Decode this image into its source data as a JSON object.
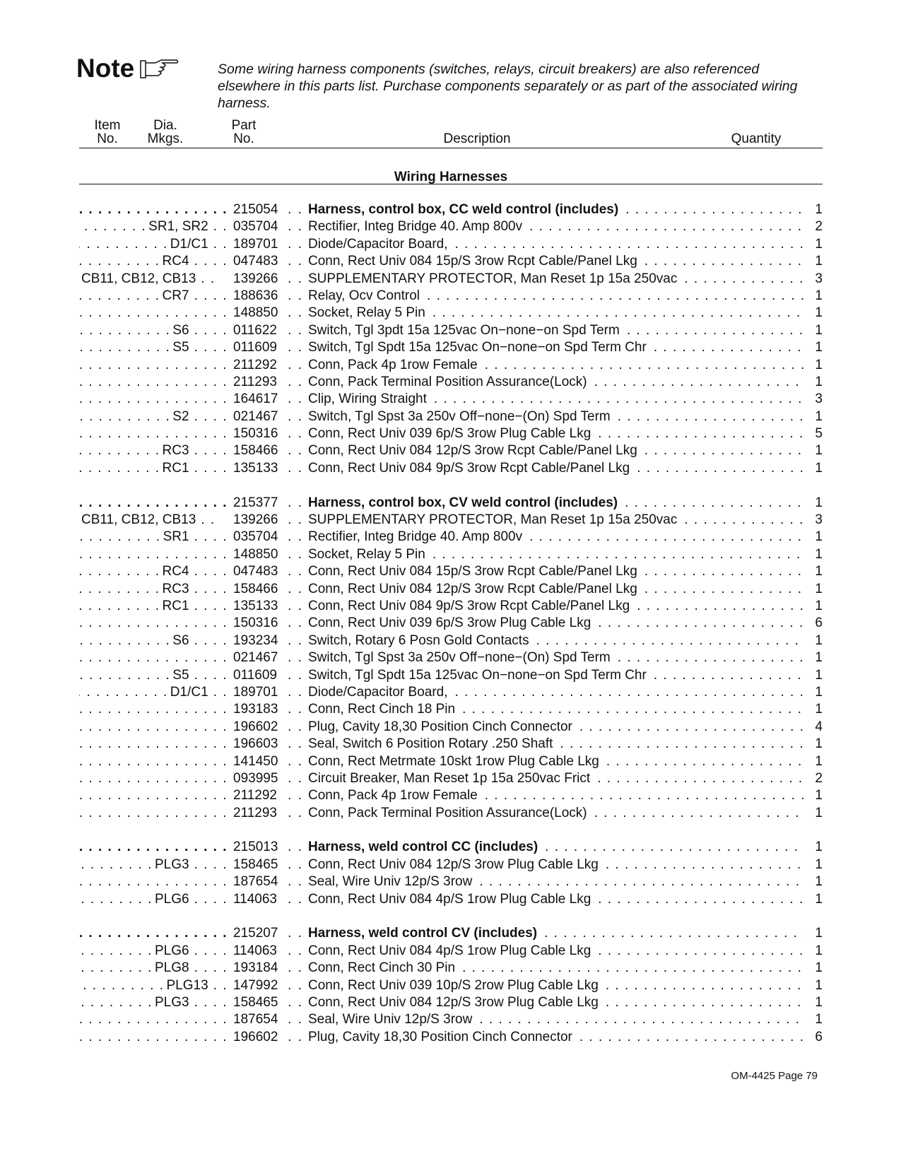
{
  "note": {
    "label": "Note",
    "icon": "pointing-hand-icon",
    "text": "Some wiring harness components (switches, relays, circuit breakers) are also referenced elsewhere in this parts list. Purchase components separately or as part of the associated wiring harness."
  },
  "columns": {
    "item_1": "Item",
    "item_2": "No.",
    "dia_1": "Dia.",
    "dia_2": "Mkgs.",
    "part_1": "Part",
    "part_2": "No.",
    "description": "Description",
    "quantity": "Quantity"
  },
  "section_title": "Wiring Harnesses",
  "groups": [
    {
      "rows": [
        {
          "mark": "",
          "part": "215054",
          "desc": "Harness, control box, CC weld control (includes)",
          "qty": "1",
          "bold": true
        },
        {
          "mark": "SR1, SR2",
          "part": "035704",
          "desc": "Rectifier, Integ Bridge 40. Amp 800v",
          "qty": "2"
        },
        {
          "mark": "D1/C1",
          "part": "189701",
          "desc": "Diode/Capacitor Board,",
          "qty": "1"
        },
        {
          "mark": "RC4",
          "part": "047483",
          "desc": "Conn, Rect Univ 084 15p/S 3row Rcpt Cable/Panel Lkg",
          "qty": "1"
        },
        {
          "mark": "CB11, CB12, CB13",
          "part": "139266",
          "desc": "SUPPLEMENTARY PROTECTOR, Man Reset 1p 15a 250vac",
          "qty": "3"
        },
        {
          "mark": "CR7",
          "part": "188636",
          "desc": "Relay, Ocv Control",
          "qty": "1"
        },
        {
          "mark": "",
          "part": "148850",
          "desc": "Socket, Relay 5 Pin",
          "qty": "1"
        },
        {
          "mark": "S6",
          "part": "011622",
          "desc": "Switch, Tgl 3pdt 15a 125vac On−none−on Spd Term",
          "qty": "1"
        },
        {
          "mark": "S5",
          "part": "011609",
          "desc": "Switch, Tgl Spdt 15a 125vac On−none−on Spd Term Chr",
          "qty": "1"
        },
        {
          "mark": "",
          "part": "211292",
          "desc": "Conn, Pack 4p 1row Female",
          "qty": "1"
        },
        {
          "mark": "",
          "part": "211293",
          "desc": "Conn, Pack Terminal Position Assurance(Lock)",
          "qty": "1"
        },
        {
          "mark": "",
          "part": "164617",
          "desc": "Clip, Wiring Straight",
          "qty": "3"
        },
        {
          "mark": "S2",
          "part": "021467",
          "desc": "Switch, Tgl Spst 3a 250v Off−none−(On) Spd Term",
          "qty": "1"
        },
        {
          "mark": "",
          "part": "150316",
          "desc": "Conn, Rect Univ 039 6p/S 3row Plug Cable Lkg",
          "qty": "5"
        },
        {
          "mark": "RC3",
          "part": "158466",
          "desc": "Conn, Rect Univ 084 12p/S 3row Rcpt Cable/Panel Lkg",
          "qty": "1"
        },
        {
          "mark": "RC1",
          "part": "135133",
          "desc": "Conn, Rect Univ 084 9p/S 3row Rcpt Cable/Panel Lkg",
          "qty": "1"
        }
      ]
    },
    {
      "rows": [
        {
          "mark": "",
          "part": "215377",
          "desc": "Harness, control box, CV weld control (includes)",
          "qty": "1",
          "bold": true
        },
        {
          "mark": "CB11, CB12, CB13",
          "part": "139266",
          "desc": "SUPPLEMENTARY PROTECTOR, Man Reset 1p 15a 250vac",
          "qty": "3"
        },
        {
          "mark": "SR1",
          "part": "035704",
          "desc": "Rectifier, Integ Bridge 40. Amp 800v",
          "qty": "1"
        },
        {
          "mark": "",
          "part": "148850",
          "desc": "Socket, Relay 5 Pin",
          "qty": "1"
        },
        {
          "mark": "RC4",
          "part": "047483",
          "desc": "Conn, Rect Univ 084 15p/S 3row Rcpt Cable/Panel Lkg",
          "qty": "1"
        },
        {
          "mark": "RC3",
          "part": "158466",
          "desc": "Conn, Rect Univ 084 12p/S 3row Rcpt Cable/Panel Lkg",
          "qty": "1"
        },
        {
          "mark": "RC1",
          "part": "135133",
          "desc": "Conn, Rect Univ 084 9p/S 3row Rcpt Cable/Panel Lkg",
          "qty": "1"
        },
        {
          "mark": "",
          "part": "150316",
          "desc": "Conn, Rect Univ 039 6p/S 3row Plug Cable Lkg",
          "qty": "6"
        },
        {
          "mark": "S6",
          "part": "193234",
          "desc": "Switch, Rotary 6 Posn Gold Contacts",
          "qty": "1"
        },
        {
          "mark": "",
          "part": "021467",
          "desc": "Switch, Tgl Spst 3a 250v Off−none−(On) Spd Term",
          "qty": "1"
        },
        {
          "mark": "S5",
          "part": "011609",
          "desc": "Switch, Tgl Spdt 15a 125vac On−none−on Spd Term Chr",
          "qty": "1"
        },
        {
          "mark": "D1/C1",
          "part": "189701",
          "desc": "Diode/Capacitor Board,",
          "qty": "1"
        },
        {
          "mark": "",
          "part": "193183",
          "desc": "Conn, Rect Cinch 18 Pin",
          "qty": "1"
        },
        {
          "mark": "",
          "part": "196602",
          "desc": "Plug, Cavity 18,30 Position Cinch Connector",
          "qty": "4"
        },
        {
          "mark": "",
          "part": "196603",
          "desc": "Seal, Switch 6 Position Rotary .250 Shaft",
          "qty": "1"
        },
        {
          "mark": "",
          "part": "141450",
          "desc": "Conn, Rect Metrmate 10skt 1row Plug Cable Lkg",
          "qty": "1"
        },
        {
          "mark": "",
          "part": "093995",
          "desc": "Circuit Breaker, Man Reset 1p 15a 250vac Frict",
          "qty": "2"
        },
        {
          "mark": "",
          "part": "211292",
          "desc": "Conn, Pack 4p 1row Female",
          "qty": "1"
        },
        {
          "mark": "",
          "part": "211293",
          "desc": "Conn, Pack Terminal Position Assurance(Lock)",
          "qty": "1"
        }
      ]
    },
    {
      "rows": [
        {
          "mark": "",
          "part": "215013",
          "desc": "Harness, weld control CC (includes)",
          "qty": "1",
          "bold": true
        },
        {
          "mark": "PLG3",
          "part": "158465",
          "desc": "Conn, Rect Univ 084 12p/S 3row Plug Cable Lkg",
          "qty": "1"
        },
        {
          "mark": "",
          "part": "187654",
          "desc": "Seal, Wire Univ 12p/S 3row",
          "qty": "1"
        },
        {
          "mark": "PLG6",
          "part": "114063",
          "desc": "Conn, Rect Univ 084 4p/S 1row Plug Cable Lkg",
          "qty": "1"
        }
      ]
    },
    {
      "rows": [
        {
          "mark": "",
          "part": "215207",
          "desc": "Harness, weld control CV (includes)",
          "qty": "1",
          "bold": true
        },
        {
          "mark": "PLG6",
          "part": "114063",
          "desc": "Conn, Rect Univ 084 4p/S 1row Plug Cable Lkg",
          "qty": "1"
        },
        {
          "mark": "PLG8",
          "part": "193184",
          "desc": "Conn, Rect Cinch 30 Pin",
          "qty": "1"
        },
        {
          "mark": "PLG13",
          "part": "147992",
          "desc": "Conn, Rect Univ 039 10p/S 2row Plug Cable Lkg",
          "qty": "1"
        },
        {
          "mark": "PLG3",
          "part": "158465",
          "desc": "Conn, Rect Univ 084 12p/S 3row Plug Cable Lkg",
          "qty": "1"
        },
        {
          "mark": "",
          "part": "187654",
          "desc": "Seal, Wire Univ 12p/S 3row",
          "qty": "1"
        },
        {
          "mark": "",
          "part": "196602",
          "desc": "Plug, Cavity 18,30 Position Cinch Connector",
          "qty": "6"
        }
      ]
    }
  ],
  "footer": "OM-4425 Page 79"
}
